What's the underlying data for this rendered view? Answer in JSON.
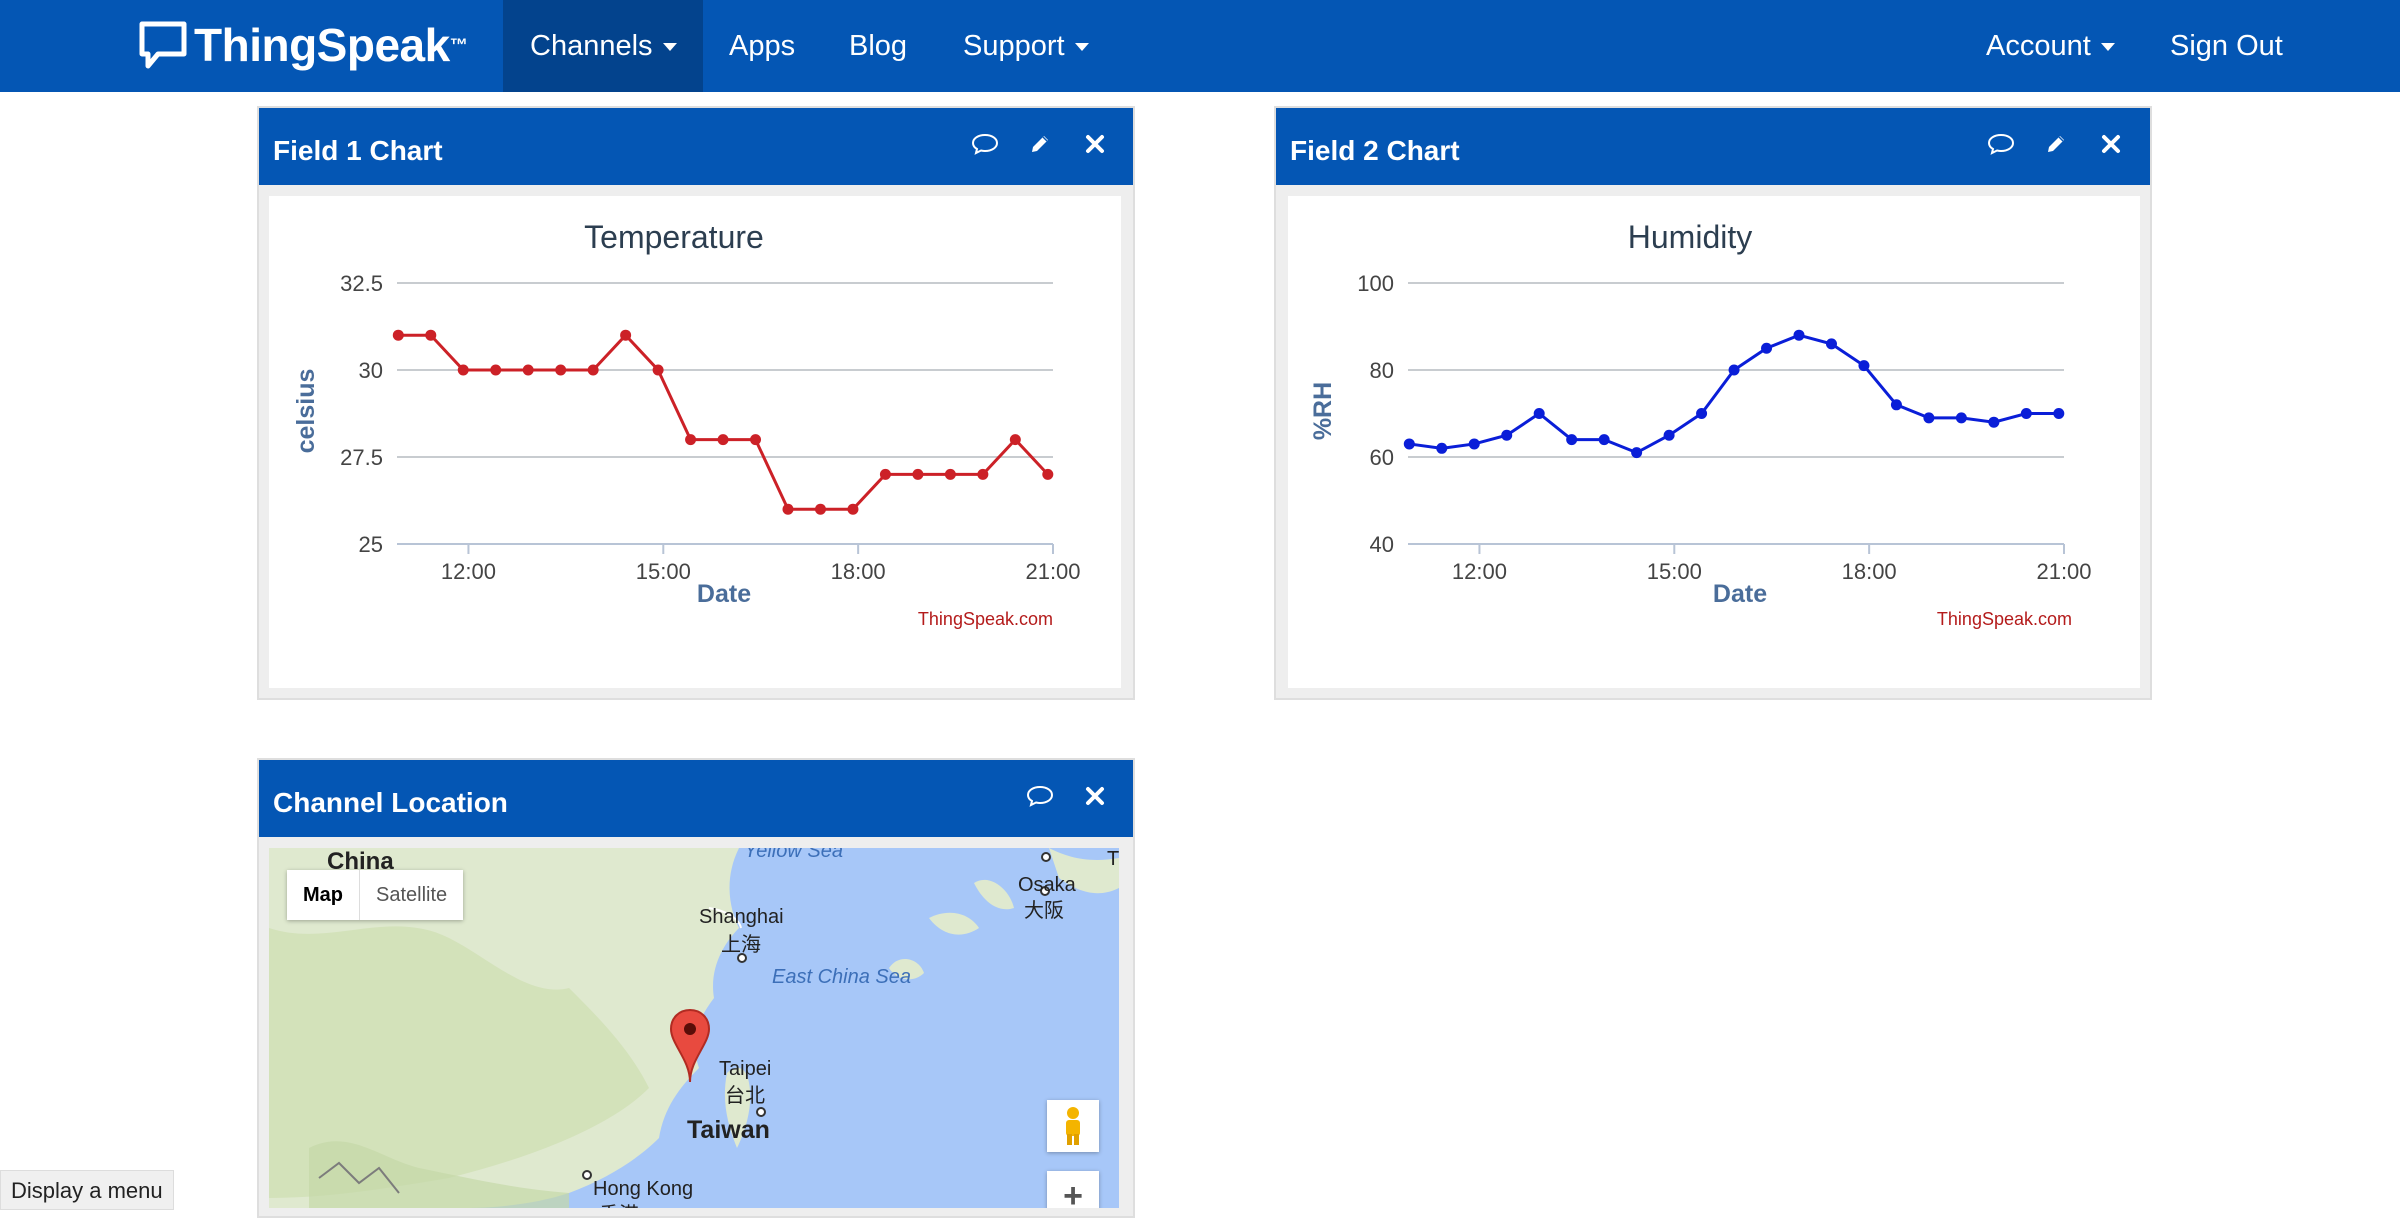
{
  "nav": {
    "logo": "ThingSpeak",
    "trademark": "™",
    "items": [
      {
        "label": "Channels"
      },
      {
        "label": "Apps"
      },
      {
        "label": "Blog"
      },
      {
        "label": "Support"
      }
    ],
    "account": "Account",
    "sign_out": "Sign Out",
    "color": "#0456b4"
  },
  "panels": {
    "field1": {
      "title": "Field 1 Chart",
      "icons": [
        "comment-icon",
        "pencil-icon",
        "close-icon"
      ]
    },
    "field2": {
      "title": "Field 2 Chart",
      "icons": [
        "comment-icon",
        "pencil-icon",
        "close-icon"
      ]
    },
    "location": {
      "title": "Channel Location",
      "icons": [
        "comment-icon",
        "close-icon"
      ],
      "map_toggle": {
        "map": "Map",
        "satellite": "Satellite"
      },
      "labels": {
        "china": "China",
        "yellow_sea": "Yellow Sea",
        "shanghai": "Shanghai",
        "shanghai_cn": "上海",
        "east_china_sea": "East China Sea",
        "osaka": "Osaka",
        "osaka_jp": "大阪",
        "taipei": "Taipei",
        "taipei_cn": "台北",
        "taiwan": "Taiwan",
        "hong_kong": "Hong Kong",
        "hong_kong_cn": "香港",
        "t_cut": "T"
      },
      "zoom_in": "+"
    }
  },
  "tooltip": "Display a menu",
  "chart_data": [
    {
      "type": "line",
      "title": "Temperature",
      "xlabel": "Date",
      "ylabel": "celsius",
      "x_ticks": [
        "12:00",
        "15:00",
        "18:00",
        "21:00"
      ],
      "y_ticks": [
        "25",
        "27.5",
        "30",
        "32.5"
      ],
      "ylim": [
        25,
        32.5
      ],
      "x_range_hours": [
        10.9,
        21.0
      ],
      "x": [
        10.92,
        11.42,
        11.92,
        12.42,
        12.92,
        13.42,
        13.92,
        14.42,
        14.92,
        15.42,
        15.92,
        16.42,
        16.92,
        17.42,
        17.92,
        18.42,
        18.92,
        19.42,
        19.92,
        20.42,
        20.92
      ],
      "series": [
        {
          "values": [
            31,
            31,
            30,
            30,
            30,
            30,
            30,
            31,
            30,
            28,
            28,
            28,
            26,
            26,
            26,
            27,
            27,
            27,
            27,
            28,
            27
          ],
          "color": "#cc2127"
        }
      ],
      "credit": "ThingSpeak.com",
      "grid": true
    },
    {
      "type": "line",
      "title": "Humidity",
      "xlabel": "Date",
      "ylabel": "%RH",
      "x_ticks": [
        "12:00",
        "15:00",
        "18:00",
        "21:00"
      ],
      "y_ticks": [
        "40",
        "60",
        "80",
        "100"
      ],
      "ylim": [
        40,
        100
      ],
      "x_range_hours": [
        10.9,
        21.0
      ],
      "x": [
        10.92,
        11.42,
        11.92,
        12.42,
        12.92,
        13.42,
        13.92,
        14.42,
        14.92,
        15.42,
        15.92,
        16.42,
        16.92,
        17.42,
        17.92,
        18.42,
        18.92,
        19.42,
        19.92,
        20.42,
        20.92
      ],
      "series": [
        {
          "values": [
            63,
            62,
            63,
            65,
            70,
            64,
            64,
            61,
            65,
            70,
            80,
            85,
            88,
            86,
            81,
            72,
            69,
            69,
            68,
            70,
            70
          ],
          "color": "#0a1ed8"
        }
      ],
      "credit": "ThingSpeak.com",
      "grid": true
    }
  ]
}
